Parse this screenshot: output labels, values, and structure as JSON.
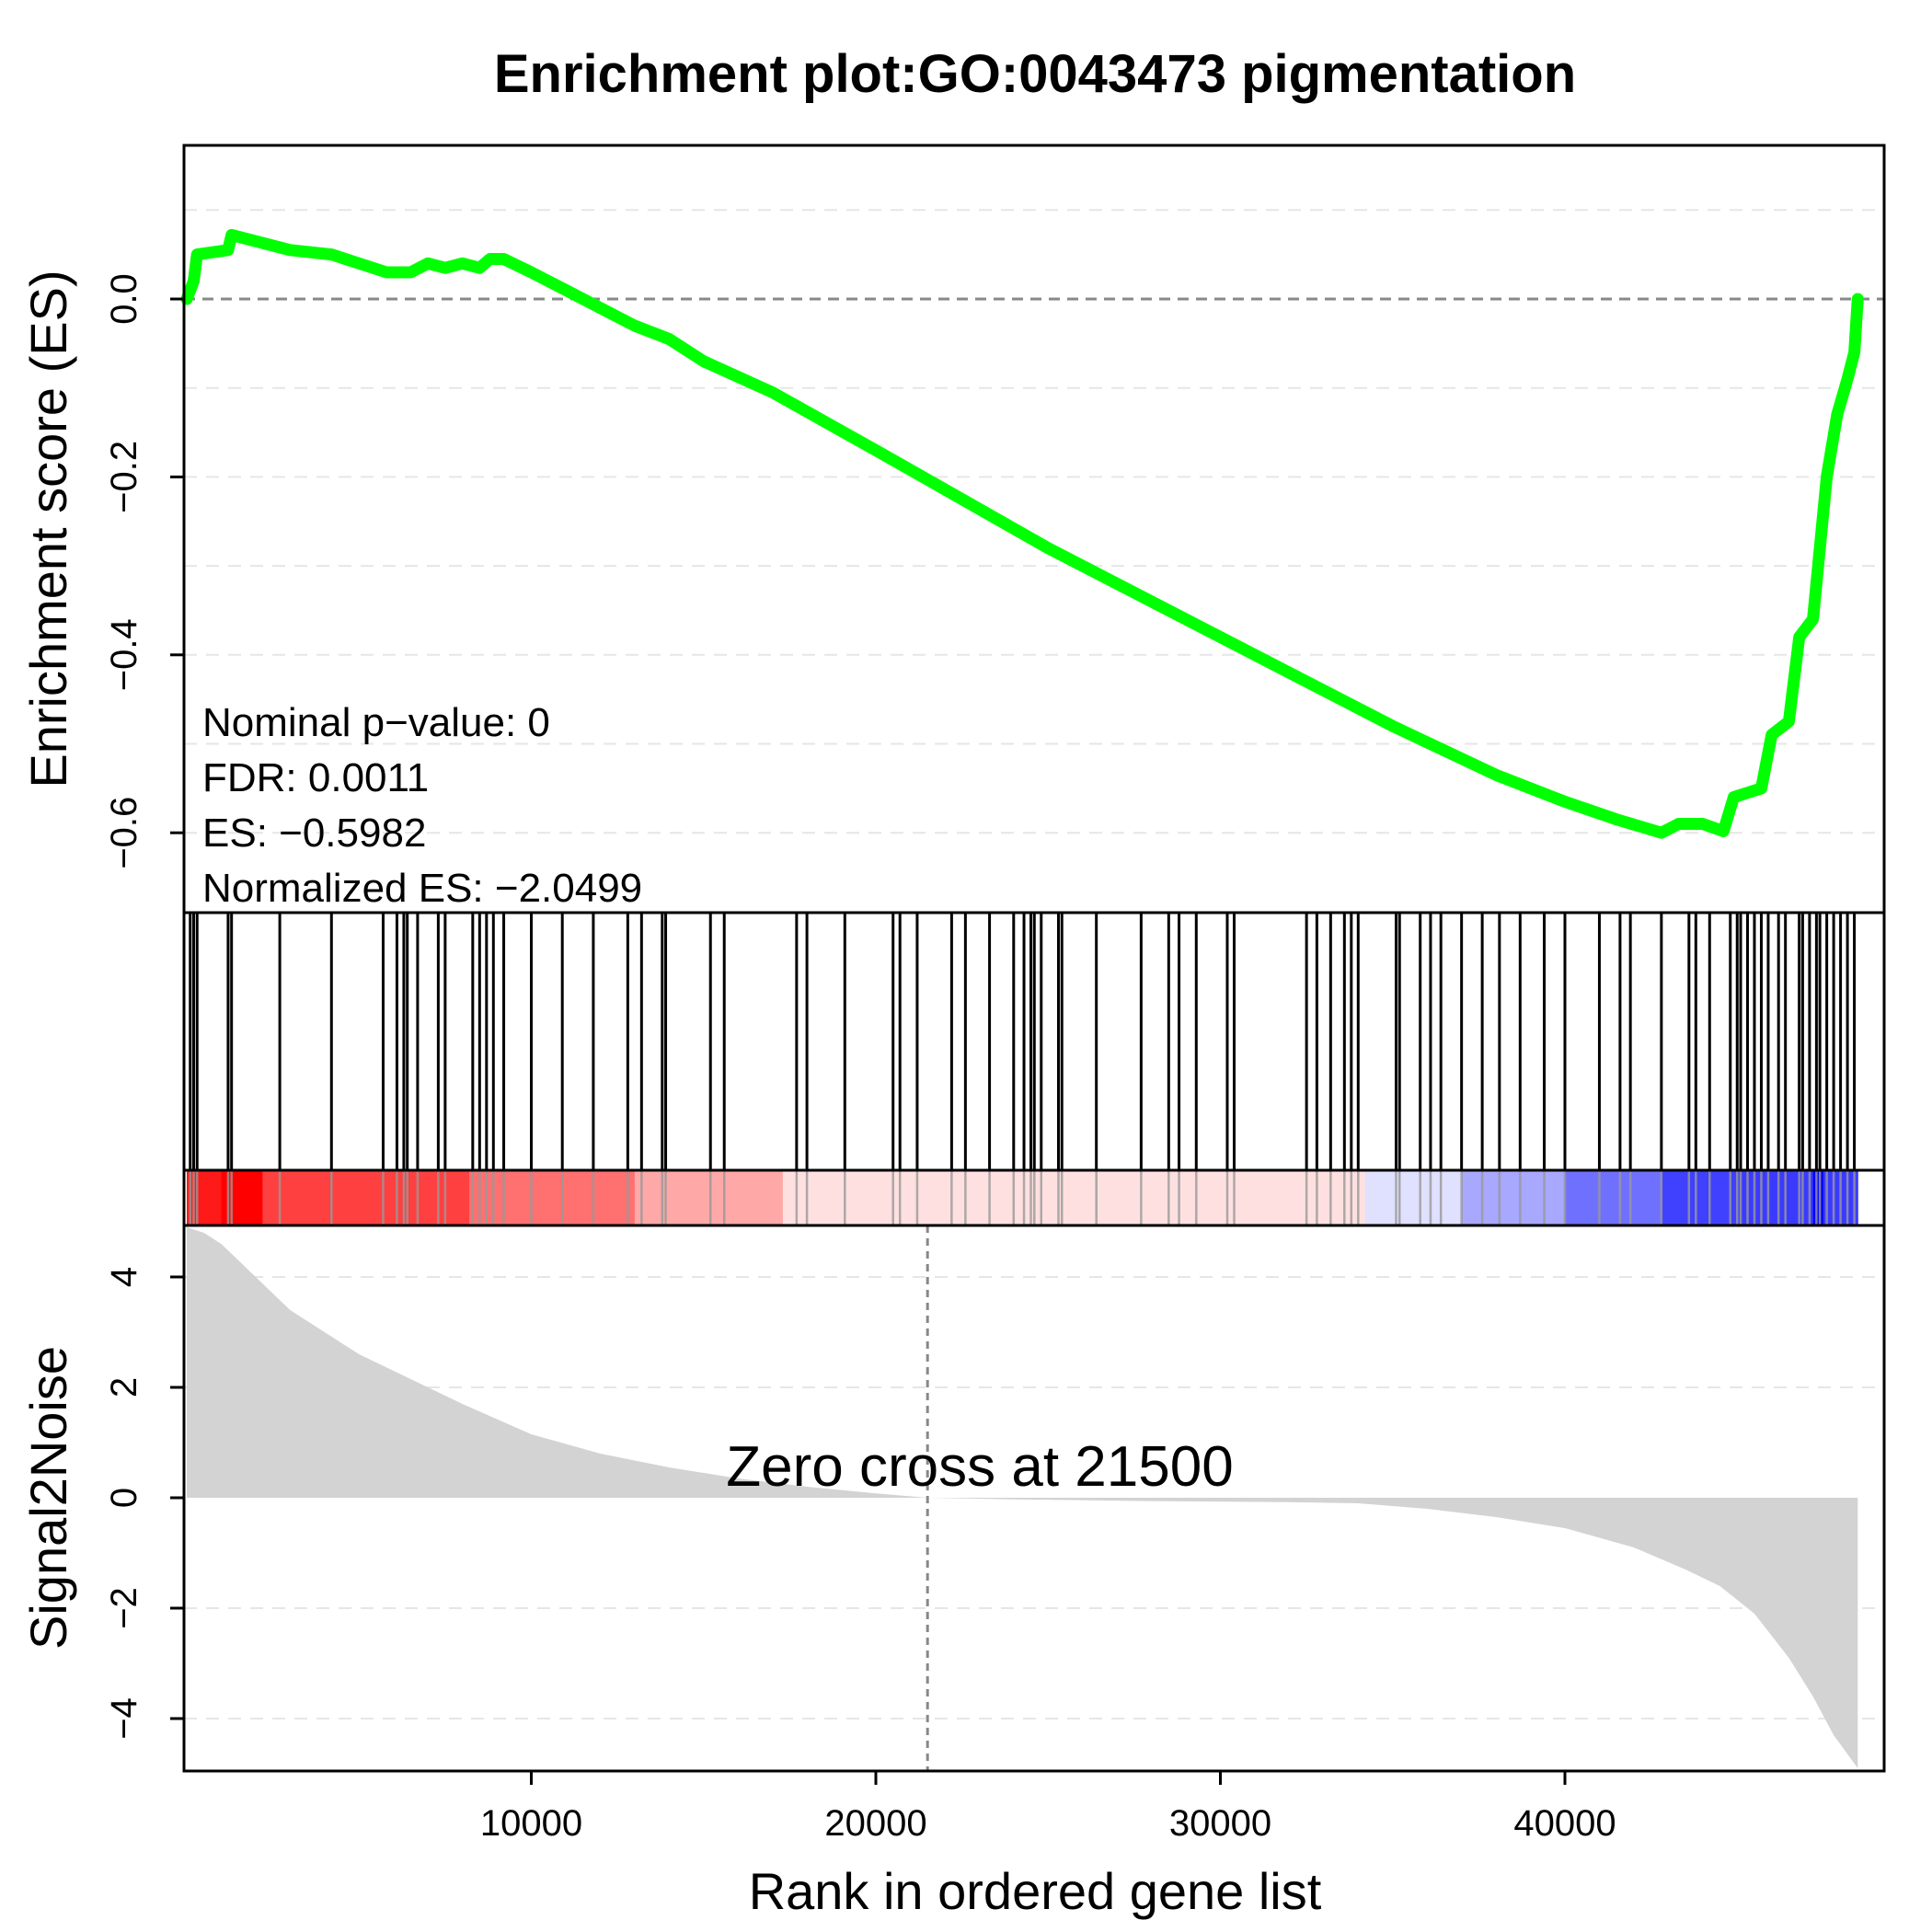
{
  "chart_data": {
    "type": "line",
    "title": "Enrichment plot:GO:0043473 pigmentation",
    "xlabel": "Rank in ordered gene list",
    "x_ticks": [
      10000,
      20000,
      30000,
      40000
    ],
    "x_tick_labels": [
      "10000",
      "20000",
      "30000",
      "40000"
    ],
    "xlim": [
      0,
      49000
    ],
    "n_genes": 48500,
    "panels": [
      {
        "name": "running-enrichment-score",
        "ylabel": "Enrichment score (ES)",
        "y_ticks": [
          0.0,
          -0.2,
          -0.4,
          -0.6
        ],
        "y_tick_labels": [
          "0.0",
          "−0.2",
          "−0.4",
          "−0.6"
        ],
        "ylim": [
          -0.71,
          0.17
        ],
        "grid": "dashed horizontal at 0.1 intervals",
        "zero_line": 0.0,
        "line_color": "#00ff00",
        "series": {
          "name": "Running ES",
          "x": [
            0,
            200,
            300,
            1200,
            1300,
            3000,
            4200,
            5800,
            6500,
            7000,
            7500,
            8000,
            8500,
            8800,
            9200,
            10000,
            11000,
            12000,
            13000,
            14000,
            15000,
            17000,
            20000,
            25000,
            30000,
            35000,
            38000,
            40000,
            41500,
            42800,
            43300,
            44000,
            44600,
            44900,
            45300,
            45700,
            46000,
            46500,
            46800,
            47200,
            47600,
            47900,
            48200,
            48400,
            48500
          ],
          "values": [
            0.0,
            0.02,
            0.05,
            0.055,
            0.072,
            0.055,
            0.05,
            0.03,
            0.03,
            0.04,
            0.035,
            0.04,
            0.035,
            0.045,
            0.045,
            0.03,
            0.01,
            -0.01,
            -0.03,
            -0.045,
            -0.07,
            -0.105,
            -0.17,
            -0.28,
            -0.38,
            -0.48,
            -0.535,
            -0.565,
            -0.585,
            -0.6,
            -0.59,
            -0.59,
            -0.5982,
            -0.56,
            -0.555,
            -0.55,
            -0.49,
            -0.475,
            -0.38,
            -0.36,
            -0.2,
            -0.13,
            -0.09,
            -0.06,
            0.0
          ]
        },
        "stats": {
          "nominal_p_value": "Nominal p−value: 0",
          "fdr": "FDR: 0.0011",
          "es": "ES: −0.5982",
          "nes": "Normalized ES: −2.0499"
        }
      },
      {
        "name": "gene-set-hits",
        "type": "barcode",
        "hit_ranks": [
          100,
          200,
          300,
          1200,
          1300,
          2700,
          4200,
          5700,
          6100,
          6300,
          6400,
          6700,
          7300,
          7500,
          8300,
          8500,
          8700,
          8900,
          9200,
          10000,
          10900,
          11800,
          12800,
          13200,
          13800,
          13900,
          15200,
          15600,
          17700,
          18000,
          19100,
          20500,
          20700,
          21200,
          22200,
          22600,
          23300,
          24000,
          24300,
          24500,
          24600,
          24800,
          25300,
          25400,
          26400,
          27700,
          28500,
          28800,
          29300,
          30200,
          30400,
          32500,
          32800,
          33200,
          33600,
          33800,
          34000,
          35100,
          35200,
          35800,
          36100,
          36400,
          37000,
          37600,
          38100,
          38700,
          39400,
          40000,
          41000,
          41600,
          41900,
          42800,
          43600,
          43800,
          44200,
          44800,
          45000,
          45100,
          45300,
          45500,
          45700,
          45900,
          46200,
          46400,
          46800,
          46900,
          47100,
          47300,
          47400,
          47600,
          47800,
          48000,
          48200,
          48400
        ],
        "color_strip": [
          {
            "from": 0,
            "to": 1000,
            "color": "#ff1a1a"
          },
          {
            "from": 1000,
            "to": 2200,
            "color": "#ff0000"
          },
          {
            "from": 2200,
            "to": 8200,
            "color": "#ff4040"
          },
          {
            "from": 8200,
            "to": 13000,
            "color": "#ff7070"
          },
          {
            "from": 13000,
            "to": 17300,
            "color": "#ffa8a8"
          },
          {
            "from": 17300,
            "to": 34200,
            "color": "#ffe0e0"
          },
          {
            "from": 34200,
            "to": 37000,
            "color": "#e0e0ff"
          },
          {
            "from": 37000,
            "to": 40000,
            "color": "#a8a8ff"
          },
          {
            "from": 40000,
            "to": 42800,
            "color": "#7070ff"
          },
          {
            "from": 42800,
            "to": 45000,
            "color": "#4040ff"
          },
          {
            "from": 45000,
            "to": 47200,
            "color": "#3a3aff"
          },
          {
            "from": 47200,
            "to": 47500,
            "color": "#0000ff"
          },
          {
            "from": 47500,
            "to": 48500,
            "color": "#3a3aff"
          }
        ]
      },
      {
        "name": "ranked-list-metric",
        "type": "area",
        "ylabel": "Signal2Noise",
        "y_ticks": [
          4,
          2,
          0,
          -2,
          -4
        ],
        "y_tick_labels": [
          "4",
          "2",
          "0",
          "−2",
          "−4"
        ],
        "ylim": [
          -5.0,
          4.9
        ],
        "fill_color": "#d3d3d3",
        "series": {
          "name": "Signal2Noise",
          "x": [
            0,
            500,
            1000,
            1500,
            2000,
            3000,
            4000,
            5000,
            6000,
            8000,
            10000,
            12000,
            14000,
            16000,
            18000,
            20000,
            21500,
            24000,
            28000,
            32000,
            34000,
            36000,
            38000,
            40000,
            42000,
            43500,
            44500,
            45500,
            46500,
            47200,
            47800,
            48500
          ],
          "values": [
            4.9,
            4.8,
            4.6,
            4.3,
            4.0,
            3.4,
            3.0,
            2.6,
            2.3,
            1.7,
            1.15,
            0.8,
            0.55,
            0.35,
            0.2,
            0.08,
            0.0,
            -0.03,
            -0.06,
            -0.08,
            -0.1,
            -0.2,
            -0.35,
            -0.55,
            -0.9,
            -1.3,
            -1.6,
            -2.1,
            -2.9,
            -3.6,
            -4.3,
            -4.9
          ]
        },
        "zero_cross": 21500,
        "annotation": "Zero cross at 21500"
      }
    ]
  }
}
